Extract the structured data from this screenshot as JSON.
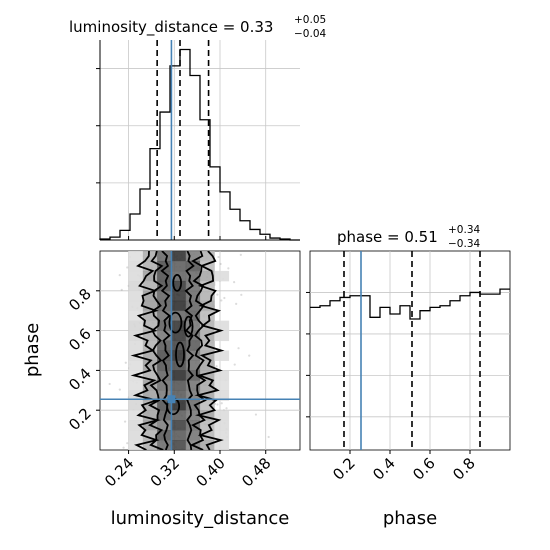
{
  "chart_data": {
    "type": "corner",
    "parameters": [
      "luminosity_distance",
      "phase"
    ],
    "truth": {
      "luminosity_distance": 0.315,
      "phase": 0.255
    },
    "titles": {
      "luminosity_distance": {
        "prefix": "luminosity_distance = 0.33",
        "plus": "+0.05",
        "minus": "−0.04"
      },
      "phase": {
        "prefix": "phase = 0.51",
        "plus": "+0.34",
        "minus": "−0.34"
      }
    },
    "axes": {
      "luminosity_distance": {
        "range": [
          0.19,
          0.54
        ],
        "ticks": [
          0.24,
          0.32,
          0.4,
          0.48
        ],
        "tick_labels": [
          "0.24",
          "0.32",
          "0.40",
          "0.48"
        ],
        "label": "luminosity_distance"
      },
      "phase": {
        "range": [
          0.0,
          1.0
        ],
        "ticks": [
          0.2,
          0.4,
          0.6,
          0.8
        ],
        "tick_labels": [
          "0.2",
          "0.4",
          "0.6",
          "0.8"
        ],
        "label": "phase"
      }
    },
    "histograms": {
      "luminosity_distance": {
        "bins": [
          0.19,
          0.2075,
          0.225,
          0.2425,
          0.26,
          0.2775,
          0.295,
          0.3125,
          0.33,
          0.3475,
          0.365,
          0.3825,
          0.4,
          0.4175,
          0.435,
          0.4525,
          0.47,
          0.4875,
          0.505,
          0.5225,
          0.54
        ],
        "counts": [
          1,
          3,
          10,
          27,
          53,
          95,
          133,
          181,
          198,
          171,
          125,
          76,
          50,
          32,
          20,
          11,
          6,
          2,
          1,
          0
        ],
        "quantiles": [
          0.29,
          0.33,
          0.38
        ]
      },
      "phase": {
        "bins": [
          0.0,
          0.05,
          0.1,
          0.15,
          0.2,
          0.25,
          0.3,
          0.35,
          0.4,
          0.45,
          0.5,
          0.55,
          0.6,
          0.65,
          0.7,
          0.75,
          0.8,
          0.85,
          0.9,
          0.95,
          1.0
        ],
        "counts": [
          0.86,
          0.87,
          0.9,
          0.92,
          0.93,
          0.93,
          0.8,
          0.86,
          0.82,
          0.87,
          0.79,
          0.84,
          0.86,
          0.87,
          0.9,
          0.93,
          0.95,
          0.94,
          0.94,
          0.97
        ],
        "quantiles": [
          0.17,
          0.51,
          0.85
        ]
      }
    },
    "joint": {
      "x_param": "luminosity_distance",
      "y_param": "phase",
      "contour_levels": [
        0.39,
        0.86,
        0.99
      ],
      "x_center": 0.326,
      "x_sigma": 0.038
    }
  }
}
